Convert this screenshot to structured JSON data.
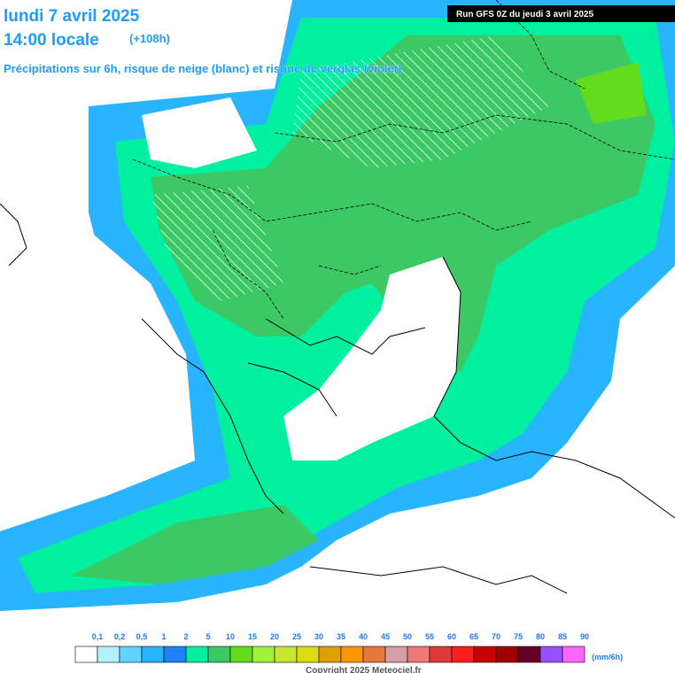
{
  "header": {
    "date": "lundi 7 avril 2025",
    "time": "14:00 locale",
    "lead": "(+108h)",
    "subtitle": "Précipitations sur 6h, risque de neige (blanc) et risque de verglas (violet)",
    "run": "Run GFS 0Z du jeudi 3 avril 2025"
  },
  "legend": {
    "labels": [
      "0,1",
      "0,2",
      "0,5",
      "1",
      "2",
      "5",
      "10",
      "15",
      "20",
      "25",
      "30",
      "35",
      "40",
      "45",
      "50",
      "55",
      "60",
      "65",
      "70",
      "75",
      "80",
      "85",
      "90"
    ],
    "colors": [
      "#ffffff",
      "#b4f0ff",
      "#64d2ff",
      "#28b4ff",
      "#1e82ff",
      "#00f0a0",
      "#3cc864",
      "#64dc1e",
      "#a0f03c",
      "#c8e632",
      "#dcdc14",
      "#dca000",
      "#ff9600",
      "#e6783c",
      "#d2a0a0",
      "#f07878",
      "#dc3c3c",
      "#ff1e1e",
      "#c80000",
      "#a00000",
      "#640028",
      "#9650ff",
      "#ff64ff"
    ],
    "unit": "(mm/6h)"
  },
  "footer": {
    "copyright": "Copyright 2025 Meteociel.fr"
  }
}
